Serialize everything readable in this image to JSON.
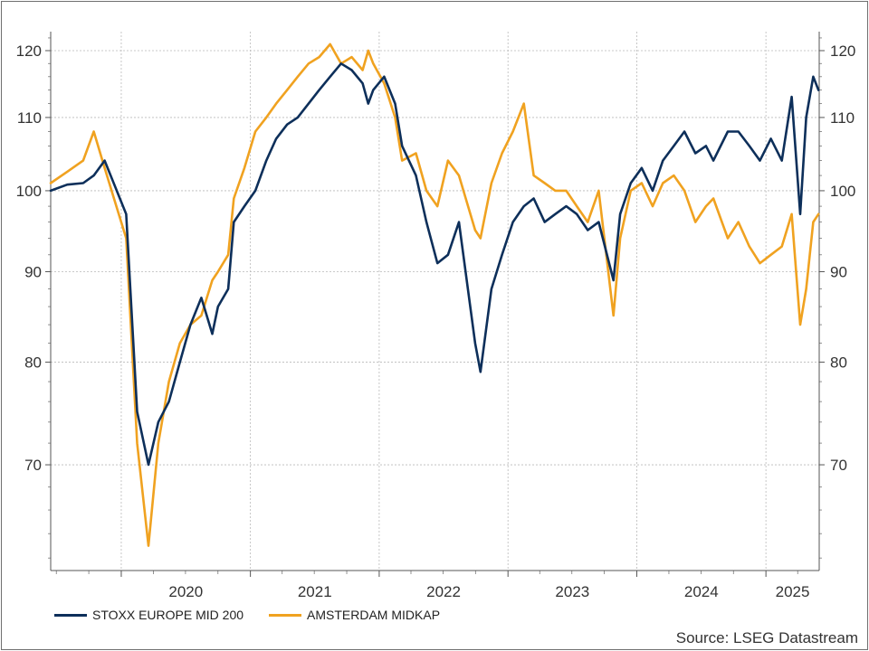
{
  "chart_data": {
    "type": "line",
    "y_scale": "log",
    "ylim": [
      61,
      123
    ],
    "y_ticks": [
      70,
      80,
      90,
      100,
      110,
      120
    ],
    "xlim": [
      "2019-06-15",
      "2025-06-01"
    ],
    "x_year_labels": [
      "2020",
      "2021",
      "2022",
      "2023",
      "2024",
      "2025"
    ],
    "grid": true,
    "legend_position": "bottom-left",
    "source": "Source: LSEG Datastream",
    "series": [
      {
        "name": "STOXX EUROPE MID 200",
        "color": "#0d2f5a",
        "x": [
          "2019-06-15",
          "2019-08-01",
          "2019-09-15",
          "2019-10-15",
          "2019-11-15",
          "2020-01-15",
          "2020-02-15",
          "2020-03-18",
          "2020-04-15",
          "2020-05-15",
          "2020-06-15",
          "2020-07-15",
          "2020-08-15",
          "2020-09-15",
          "2020-10-01",
          "2020-10-30",
          "2020-11-15",
          "2020-12-15",
          "2021-01-15",
          "2021-02-15",
          "2021-03-15",
          "2021-04-15",
          "2021-05-15",
          "2021-06-15",
          "2021-07-15",
          "2021-08-15",
          "2021-09-15",
          "2021-10-15",
          "2021-11-15",
          "2021-12-01",
          "2021-12-15",
          "2022-01-15",
          "2022-02-15",
          "2022-03-07",
          "2022-04-15",
          "2022-05-15",
          "2022-06-15",
          "2022-07-15",
          "2022-08-15",
          "2022-09-30",
          "2022-10-15",
          "2022-11-15",
          "2022-12-15",
          "2023-01-15",
          "2023-02-15",
          "2023-03-15",
          "2023-04-15",
          "2023-05-15",
          "2023-06-15",
          "2023-07-15",
          "2023-08-15",
          "2023-09-15",
          "2023-10-27",
          "2023-11-15",
          "2023-12-15",
          "2024-01-15",
          "2024-02-15",
          "2024-03-15",
          "2024-04-15",
          "2024-05-15",
          "2024-06-15",
          "2024-07-15",
          "2024-08-05",
          "2024-09-15",
          "2024-10-15",
          "2024-11-15",
          "2024-12-15",
          "2025-01-15",
          "2025-02-15",
          "2025-03-15",
          "2025-04-08",
          "2025-04-25",
          "2025-05-15",
          "2025-05-30"
        ],
        "values": [
          100,
          100.8,
          101,
          102,
          104,
          97,
          75,
          70,
          74,
          76,
          80,
          84,
          87,
          83,
          86,
          88,
          96,
          98,
          100,
          104,
          107,
          109,
          110,
          112,
          114,
          116,
          118,
          117,
          115,
          112,
          114,
          116,
          112,
          106,
          102,
          96,
          91,
          92,
          96,
          82,
          79,
          88,
          92,
          96,
          98,
          99,
          96,
          97,
          98,
          97,
          95,
          96,
          89,
          97,
          101,
          103,
          100,
          104,
          106,
          108,
          105,
          106,
          104,
          108,
          108,
          106,
          104,
          107,
          104,
          113,
          97,
          110,
          116,
          114
        ]
      },
      {
        "name": "AMSTERDAM MIDKAP",
        "color": "#f0a220",
        "x": [
          "2019-06-15",
          "2019-08-01",
          "2019-09-15",
          "2019-10-15",
          "2019-11-15",
          "2020-01-15",
          "2020-02-15",
          "2020-03-18",
          "2020-04-15",
          "2020-05-15",
          "2020-06-15",
          "2020-07-15",
          "2020-08-15",
          "2020-09-15",
          "2020-10-01",
          "2020-10-30",
          "2020-11-15",
          "2020-12-15",
          "2021-01-15",
          "2021-02-15",
          "2021-03-15",
          "2021-04-15",
          "2021-05-15",
          "2021-06-15",
          "2021-07-15",
          "2021-08-15",
          "2021-09-15",
          "2021-10-15",
          "2021-11-15",
          "2021-12-01",
          "2021-12-15",
          "2022-01-15",
          "2022-02-15",
          "2022-03-07",
          "2022-04-15",
          "2022-05-15",
          "2022-06-15",
          "2022-07-15",
          "2022-08-15",
          "2022-09-30",
          "2022-10-15",
          "2022-11-15",
          "2022-12-15",
          "2023-01-15",
          "2023-02-15",
          "2023-03-15",
          "2023-04-15",
          "2023-05-15",
          "2023-06-15",
          "2023-07-15",
          "2023-08-15",
          "2023-09-15",
          "2023-10-27",
          "2023-11-15",
          "2023-12-15",
          "2024-01-15",
          "2024-02-15",
          "2024-03-15",
          "2024-04-15",
          "2024-05-15",
          "2024-06-15",
          "2024-07-15",
          "2024-08-05",
          "2024-09-15",
          "2024-10-15",
          "2024-11-15",
          "2024-12-15",
          "2025-01-15",
          "2025-02-15",
          "2025-03-15",
          "2025-04-08",
          "2025-04-25",
          "2025-05-15",
          "2025-05-30"
        ],
        "values": [
          101,
          102.5,
          104,
          108,
          103,
          94,
          72,
          63,
          72,
          78,
          82,
          84,
          85,
          89,
          90,
          92,
          99,
          103,
          108,
          110,
          112,
          114,
          116,
          118,
          119,
          121,
          118,
          119,
          117,
          120,
          118,
          115,
          110,
          104,
          105,
          100,
          98,
          104,
          102,
          95,
          94,
          101,
          105,
          108,
          112,
          102,
          101,
          100,
          100,
          98,
          96,
          100,
          85,
          94,
          100,
          101,
          98,
          101,
          102,
          100,
          96,
          98,
          99,
          94,
          96,
          93,
          91,
          92,
          93,
          97,
          84,
          88,
          96,
          97
        ]
      }
    ]
  }
}
